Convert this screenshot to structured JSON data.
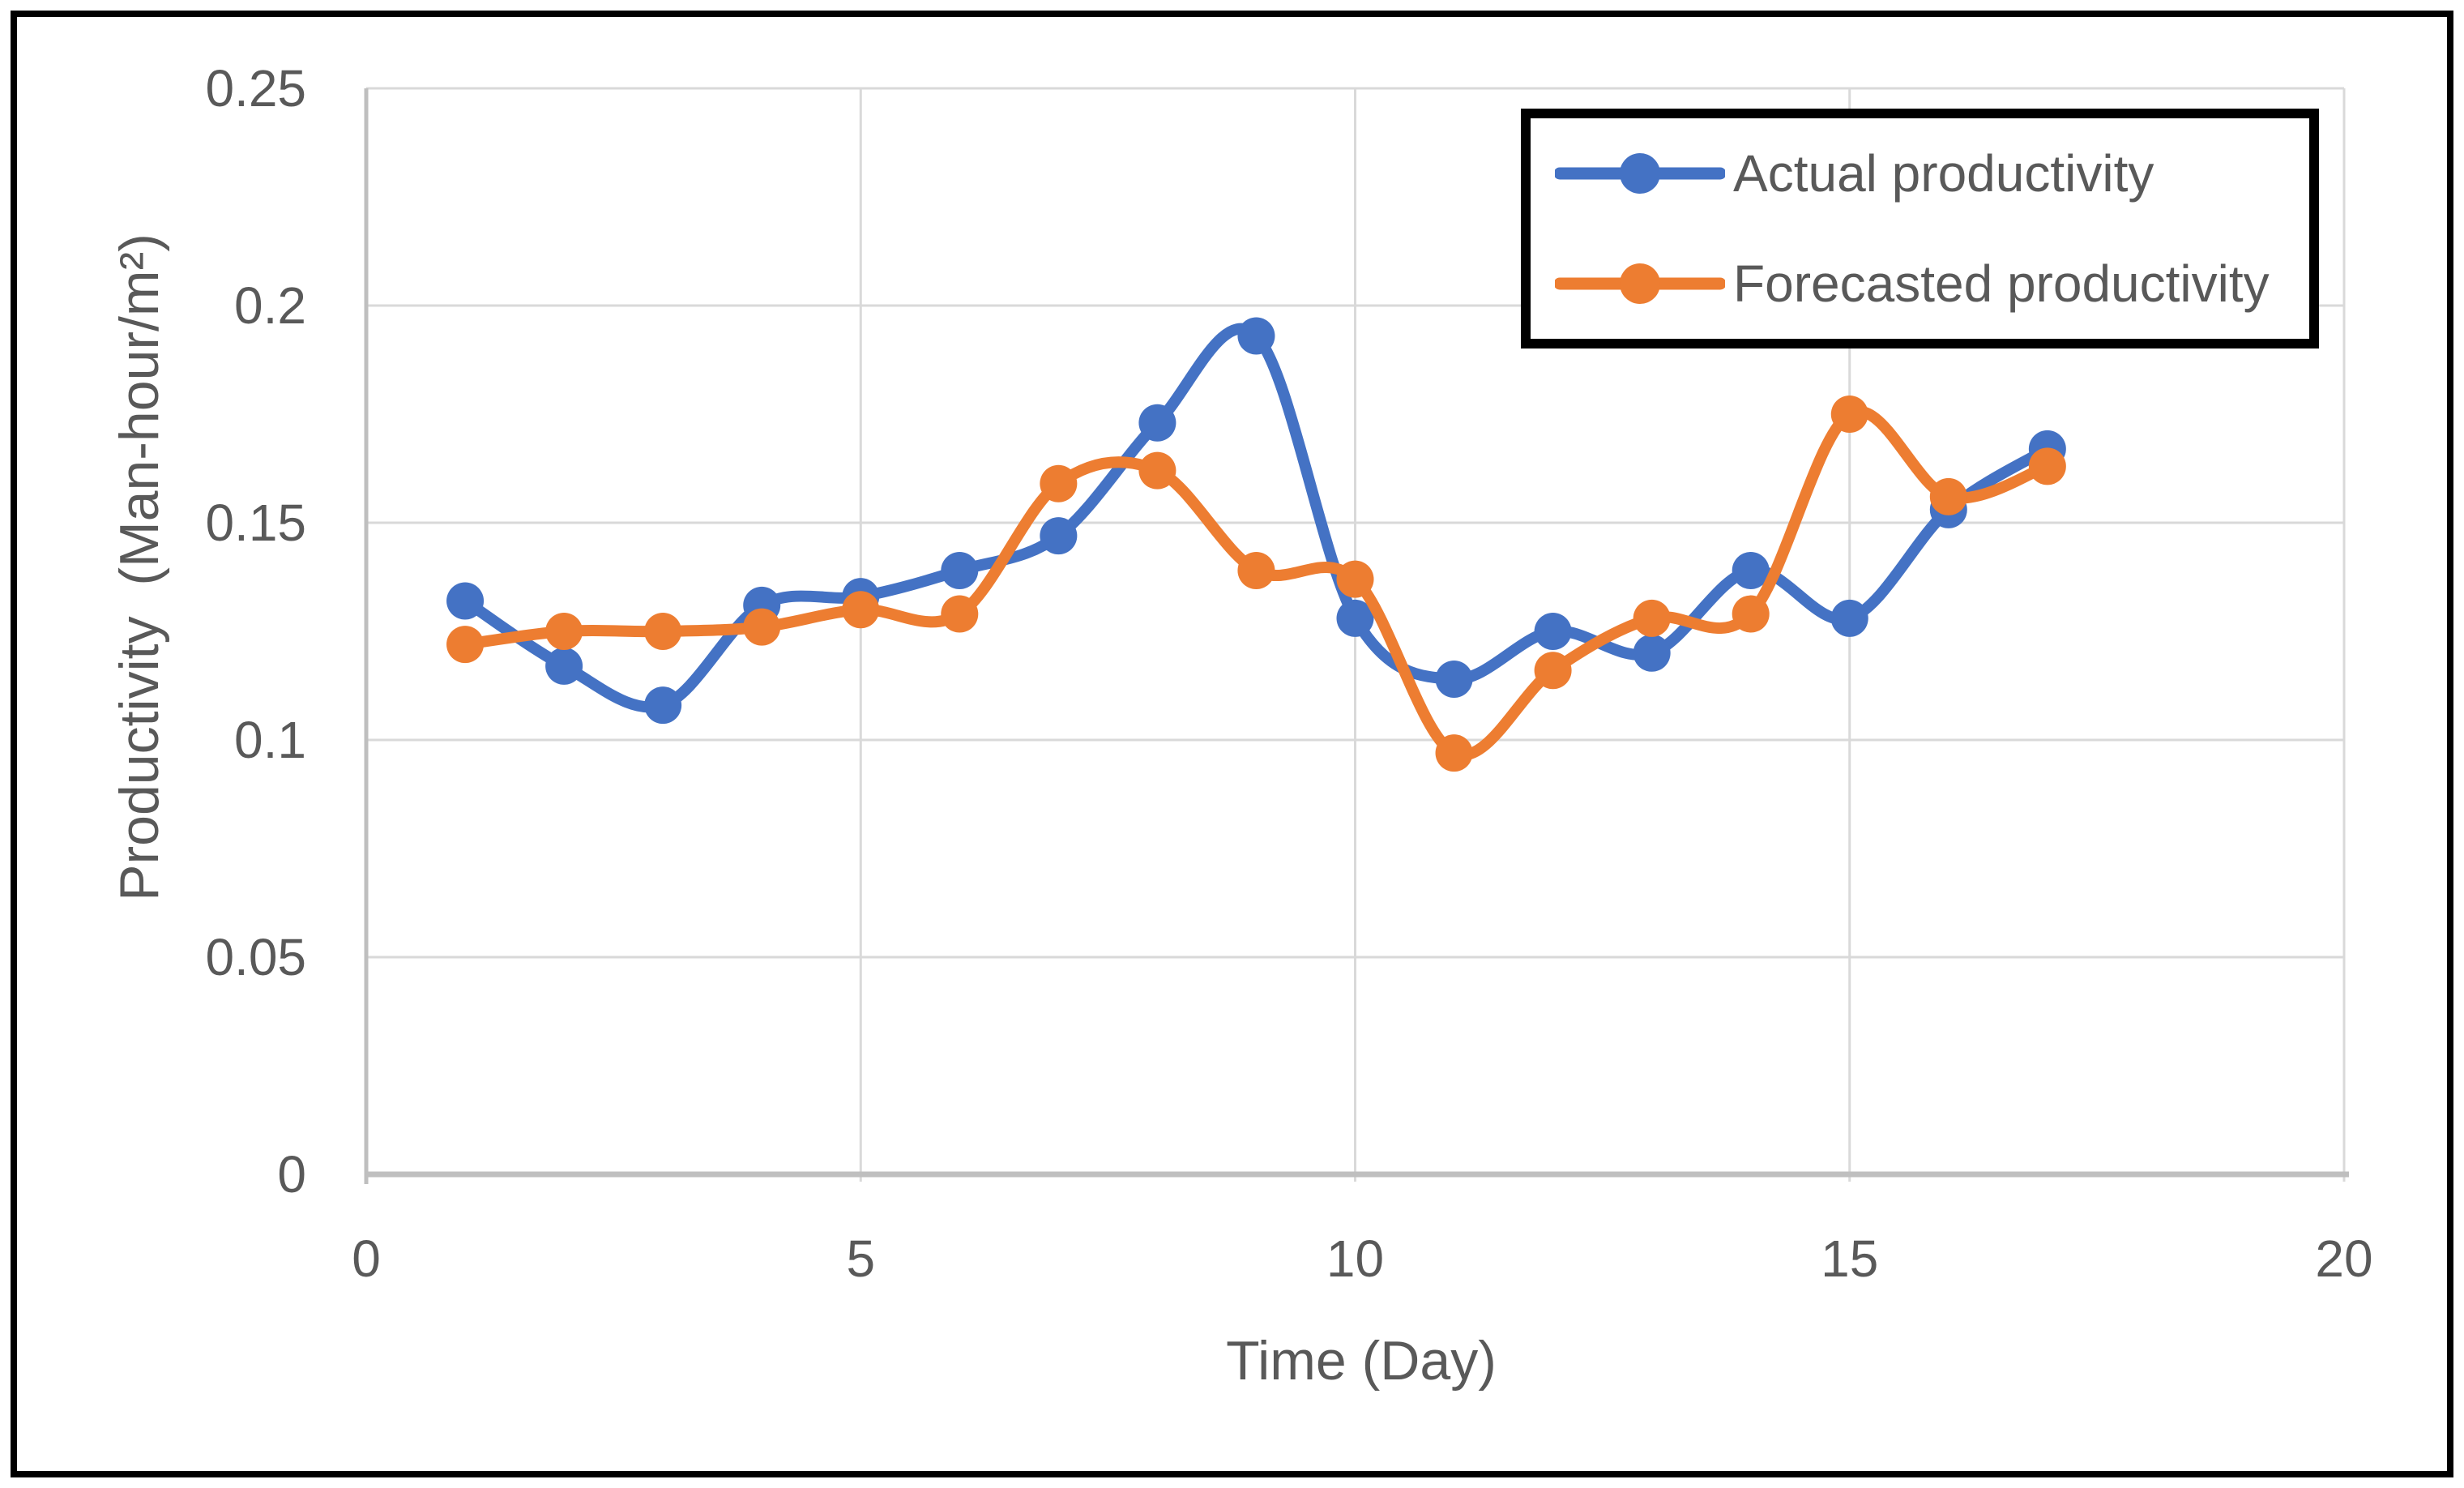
{
  "chart_data": {
    "type": "line",
    "title": "",
    "xlabel": "Time (Day)",
    "ylabel": "Productivity  (Man-hour/m²)",
    "x": [
      1,
      2,
      3,
      4,
      5,
      6,
      7,
      8,
      9,
      10,
      11,
      12,
      13,
      14,
      15,
      16,
      17
    ],
    "series": [
      {
        "name": "Actual productivity",
        "color": "#4472C4",
        "values": [
          0.132,
          0.117,
          0.108,
          0.131,
          0.133,
          0.139,
          0.147,
          0.173,
          0.193,
          0.128,
          0.114,
          0.125,
          0.12,
          0.139,
          0.128,
          0.153,
          0.167
        ]
      },
      {
        "name": "Forecasted productivity",
        "color": "#ED7D31",
        "values": [
          0.122,
          0.125,
          0.125,
          0.126,
          0.13,
          0.129,
          0.159,
          0.162,
          0.139,
          0.137,
          0.097,
          0.116,
          0.128,
          0.129,
          0.175,
          0.156,
          0.163
        ]
      }
    ],
    "xlim": [
      0,
      20
    ],
    "ylim": [
      0,
      0.25
    ],
    "x_ticks": [
      0,
      5,
      10,
      15,
      20
    ],
    "x_tick_labels": [
      "0",
      "5",
      "10",
      "15",
      "20"
    ],
    "y_ticks": [
      0,
      0.05,
      0.1,
      0.15,
      0.2,
      0.25
    ],
    "y_tick_labels": [
      "0",
      "0.05",
      "0.1",
      "0.15",
      "0.2",
      "0.25"
    ],
    "grid": true,
    "smooth_lines": true,
    "marker": "circle",
    "legend_position": "top-right",
    "colors": {
      "gridline": "#D9D9D9",
      "axis": "#BFBFBF",
      "text": "#595959",
      "legend_border": "#000000",
      "frame_border": "#000000",
      "background": "#FFFFFF"
    }
  }
}
